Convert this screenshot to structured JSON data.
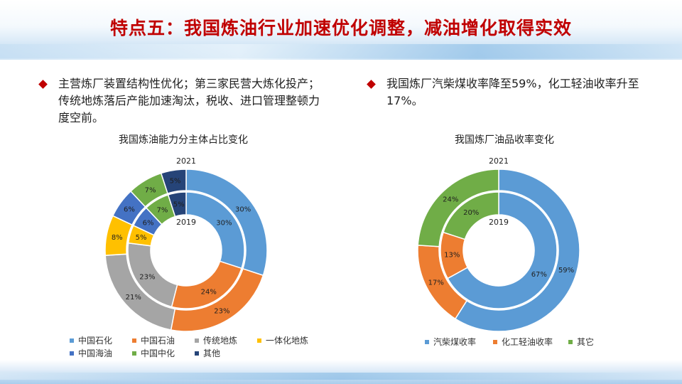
{
  "slide": {
    "title": "特点五：我国炼油行业加速优化调整，减油增化取得实效",
    "bullet_left": "主营炼厂装置结构性优化；第三家民营大炼化投产；传统地炼落后产能加速淘汰，税收、进口管理整顿力度空前。",
    "bullet_right": "我国炼厂汽柴煤收率降至59%，化工轻油收率升至17%。",
    "accent_color": "#c00000"
  },
  "chart_data": [
    {
      "type": "pie",
      "subtype": "nested-donut",
      "title": "我国炼油能力分主体占比变化",
      "outer_ring_label": "2021",
      "inner_ring_label": "2019",
      "categories": [
        "中国石化",
        "中国石油",
        "传统地炼",
        "一体化地炼",
        "中国海油",
        "中国中化",
        "其他"
      ],
      "colors": [
        "#5b9bd5",
        "#ed7d31",
        "#a5a5a5",
        "#ffc000",
        "#4472c4",
        "#70ad47",
        "#264478"
      ],
      "series": [
        {
          "name": "2021",
          "ring": "outer",
          "values": [
            30,
            23,
            21,
            8,
            6,
            7,
            5
          ],
          "labels": [
            "30%",
            "23%",
            "21%",
            "8%",
            "6%",
            "7%",
            "5%"
          ]
        },
        {
          "name": "2019",
          "ring": "inner",
          "values": [
            30,
            24,
            23,
            5,
            6,
            7,
            5
          ],
          "labels": [
            "30%",
            "24%",
            "23%",
            "5%",
            "6%",
            "7%",
            "5%"
          ]
        }
      ],
      "legend": {
        "position": "bottom"
      }
    },
    {
      "type": "pie",
      "subtype": "nested-donut",
      "title": "我国炼厂油品收率变化",
      "outer_ring_label": "2021",
      "inner_ring_label": "2019",
      "categories": [
        "汽柴煤收率",
        "化工轻油收率",
        "其它"
      ],
      "colors": [
        "#5b9bd5",
        "#ed7d31",
        "#70ad47"
      ],
      "series": [
        {
          "name": "2021",
          "ring": "outer",
          "values": [
            59,
            17,
            24
          ],
          "labels": [
            "59%",
            "17%",
            "24%"
          ]
        },
        {
          "name": "2019",
          "ring": "inner",
          "values": [
            67,
            13,
            20
          ],
          "labels": [
            "67%",
            "13%",
            "20%"
          ]
        }
      ],
      "legend": {
        "position": "bottom"
      }
    }
  ]
}
